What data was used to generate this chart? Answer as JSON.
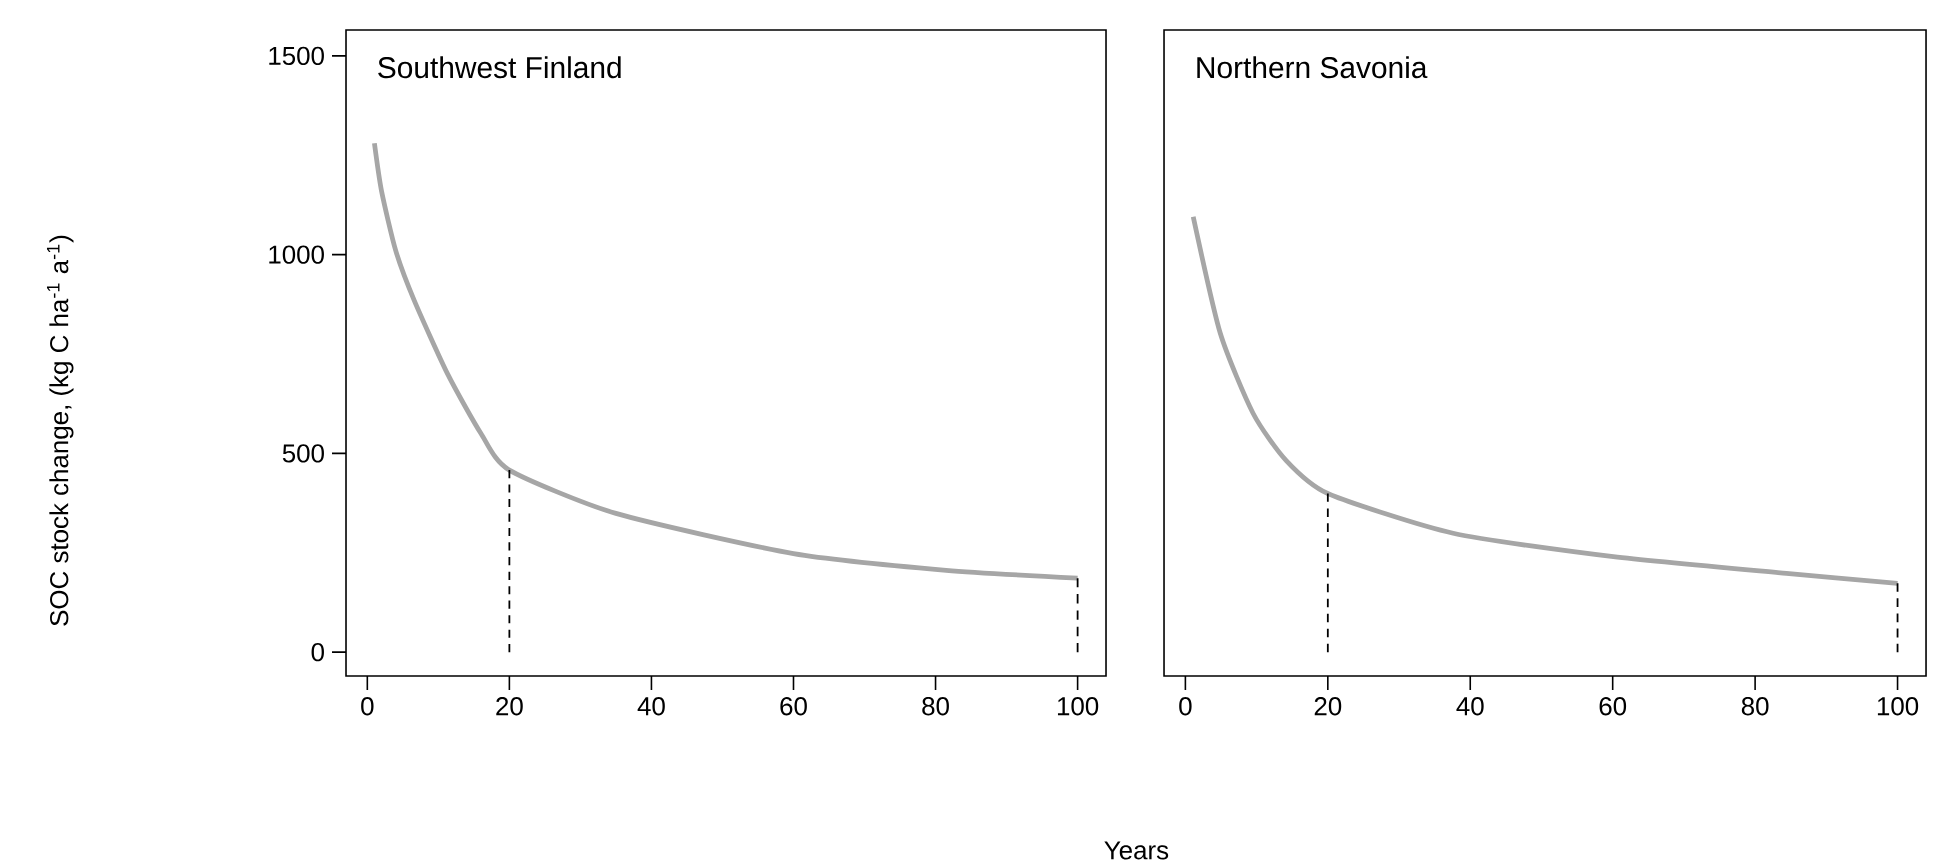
{
  "chart_data": [
    {
      "type": "line",
      "title": "Southwest Finland",
      "xlabel": "Years",
      "ylabel": "SOC stock change, (kg C ha$^{-1}$ a$^{-1}$)",
      "xlim": [
        -3,
        104
      ],
      "ylim": [
        -60,
        1565
      ],
      "xticks": [
        0,
        20,
        40,
        60,
        80,
        100
      ],
      "yticks": [
        0,
        500,
        1000,
        1500
      ],
      "marker": "none",
      "series": [
        {
          "color": "#a6a6a6",
          "line_style": "solid",
          "x": [
            1,
            2,
            4,
            6.6,
            11.3,
            16,
            20,
            35,
            60,
            81.5,
            100
          ],
          "values": [
            1280,
            1160,
            1010,
            885,
            700,
            550,
            458,
            349,
            248,
            206,
            186
          ]
        },
        {
          "color": "#000000",
          "line_style": "dashed",
          "x": [
            20,
            20
          ],
          "values": [
            0,
            458
          ]
        },
        {
          "color": "#000000",
          "line_style": "dashed",
          "x": [
            100,
            100
          ],
          "values": [
            0,
            186
          ]
        }
      ]
    },
    {
      "type": "line",
      "title": "Northern Savonia",
      "xlim": [
        -3,
        104
      ],
      "ylim": [
        -60,
        1565
      ],
      "xticks": [
        0,
        20,
        40,
        60,
        80,
        100
      ],
      "tick_labels": "x",
      "marker": "none",
      "series": [
        {
          "color": "#a6a6a6",
          "line_style": "solid",
          "x": [
            1.1,
            4.9,
            9.5,
            14.1,
            20,
            37.6,
            60.1,
            84.4,
            100
          ],
          "values": [
            1095,
            802,
            601,
            483,
            399,
            299,
            240,
            198,
            173
          ]
        },
        {
          "color": "#000000",
          "line_style": "dashed",
          "x": [
            20,
            20
          ],
          "values": [
            0,
            399
          ]
        },
        {
          "color": "#000000",
          "line_style": "dashed",
          "x": [
            100,
            100
          ],
          "values": [
            0,
            173
          ]
        }
      ]
    }
  ]
}
